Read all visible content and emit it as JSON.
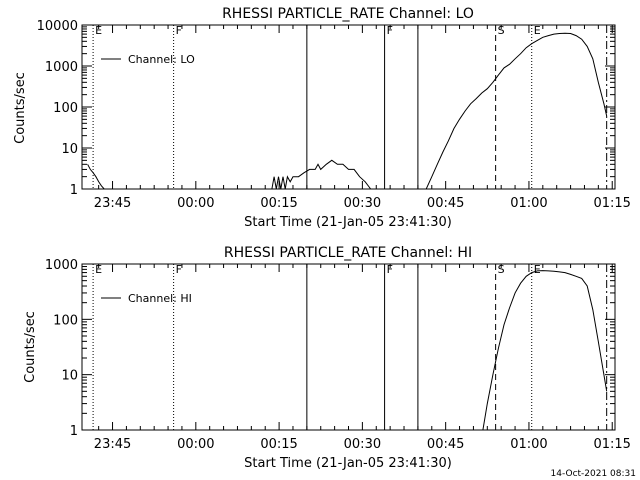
{
  "chart_data": [
    {
      "type": "line",
      "title": "RHESSI PARTICLE_RATE Channel: LO",
      "xlabel": "Start Time (21-Jan-05 23:41:30)",
      "ylabel": "Counts/sec",
      "y_scale": "log",
      "ylim": [
        1,
        10000
      ],
      "y_ticks": [
        {
          "value": 1,
          "label": "1"
        },
        {
          "value": 10,
          "label": "10"
        },
        {
          "value": 100,
          "label": "100"
        },
        {
          "value": 1000,
          "label": "1000"
        },
        {
          "value": 10000,
          "label": "10000"
        }
      ],
      "xlim": [
        -2,
        94
      ],
      "x_ticks": [
        {
          "value": 3.5,
          "label": "23:45"
        },
        {
          "value": 18.5,
          "label": "00:00"
        },
        {
          "value": 33.5,
          "label": "00:15"
        },
        {
          "value": 48.5,
          "label": "00:30"
        },
        {
          "value": 63.5,
          "label": "00:45"
        },
        {
          "value": 78.5,
          "label": "01:00"
        },
        {
          "value": 93.5,
          "label": "01:15"
        }
      ],
      "legend": {
        "label": "Channel: LO",
        "position": "top-left"
      },
      "markers": [
        {
          "x": 0,
          "style": "dotted",
          "label": "E"
        },
        {
          "x": 14.5,
          "style": "dotted",
          "label": "F"
        },
        {
          "x": 38.5,
          "style": "solid",
          "label": ""
        },
        {
          "x": 52.5,
          "style": "solid",
          "label": "F"
        },
        {
          "x": 58.5,
          "style": "solid",
          "label": ""
        },
        {
          "x": 72.5,
          "style": "dashed",
          "label": "S"
        },
        {
          "x": 79,
          "style": "dotted",
          "label": "E"
        },
        {
          "x": 92.5,
          "style": "dashdot",
          "label": ""
        }
      ],
      "series": [
        {
          "x": [
            -1,
            -0.5,
            0,
            0.5,
            1,
            1.5,
            2,
            2.4,
            32.2,
            32.6,
            33,
            33.4,
            33.8,
            34.2,
            34.6,
            35,
            35.5,
            36,
            37,
            38,
            39,
            40,
            40.5,
            41,
            42,
            43,
            44,
            45,
            46,
            47,
            48,
            49,
            50,
            60,
            61,
            62,
            63,
            64,
            65,
            66,
            67,
            68,
            69,
            70,
            71,
            72,
            73,
            74,
            75,
            76,
            77,
            78,
            79,
            80,
            81,
            82,
            83,
            84,
            85,
            86,
            87,
            88,
            89,
            90,
            91,
            92,
            92.5
          ],
          "y": [
            4,
            3,
            2.5,
            2,
            1.5,
            1.2,
            1,
            1,
            1,
            2,
            1,
            2,
            1,
            2,
            1,
            2,
            1.5,
            2,
            2,
            2.5,
            3,
            3,
            4,
            3,
            4,
            5,
            4,
            4,
            3,
            3,
            2,
            1.5,
            1,
            1,
            2,
            4,
            8,
            15,
            30,
            50,
            80,
            120,
            160,
            220,
            280,
            400,
            600,
            900,
            1100,
            1500,
            2000,
            2800,
            3500,
            4200,
            5000,
            5500,
            6000,
            6200,
            6300,
            6200,
            5500,
            4500,
            3000,
            1500,
            400,
            120,
            60
          ]
        }
      ]
    },
    {
      "type": "line",
      "title": "RHESSI PARTICLE_RATE Channel: HI",
      "xlabel": "Start Time (21-Jan-05 23:41:30)",
      "ylabel": "Counts/sec",
      "y_scale": "log",
      "ylim": [
        1,
        1000
      ],
      "y_ticks": [
        {
          "value": 1,
          "label": "1"
        },
        {
          "value": 10,
          "label": "10"
        },
        {
          "value": 100,
          "label": "100"
        },
        {
          "value": 1000,
          "label": "1000"
        }
      ],
      "xlim": [
        -2,
        94
      ],
      "x_ticks": [
        {
          "value": 3.5,
          "label": "23:45"
        },
        {
          "value": 18.5,
          "label": "00:00"
        },
        {
          "value": 33.5,
          "label": "00:15"
        },
        {
          "value": 48.5,
          "label": "00:30"
        },
        {
          "value": 63.5,
          "label": "00:45"
        },
        {
          "value": 78.5,
          "label": "01:00"
        },
        {
          "value": 93.5,
          "label": "01:15"
        }
      ],
      "legend": {
        "label": "Channel: HI",
        "position": "top-left"
      },
      "markers": [
        {
          "x": 0,
          "style": "dotted",
          "label": "E"
        },
        {
          "x": 14.5,
          "style": "dotted",
          "label": "F"
        },
        {
          "x": 38.5,
          "style": "solid",
          "label": ""
        },
        {
          "x": 52.5,
          "style": "solid",
          "label": "F"
        },
        {
          "x": 58.5,
          "style": "solid",
          "label": ""
        },
        {
          "x": 72.5,
          "style": "dashed",
          "label": "S"
        },
        {
          "x": 79,
          "style": "dotted",
          "label": "E"
        },
        {
          "x": 92.5,
          "style": "dashdot",
          "label": ""
        }
      ],
      "series": [
        {
          "x": [
            70.2,
            71,
            72,
            73,
            74,
            75,
            76,
            77,
            78,
            79,
            80,
            81,
            82,
            83,
            84,
            85,
            86,
            87,
            88,
            89,
            90,
            91,
            92,
            92.5
          ],
          "y": [
            1,
            3,
            10,
            30,
            80,
            160,
            300,
            450,
            600,
            700,
            750,
            760,
            750,
            740,
            720,
            700,
            650,
            600,
            550,
            400,
            150,
            40,
            10,
            5
          ]
        }
      ]
    }
  ],
  "footer": {
    "timestamp": "14-Oct-2021 08:31"
  }
}
